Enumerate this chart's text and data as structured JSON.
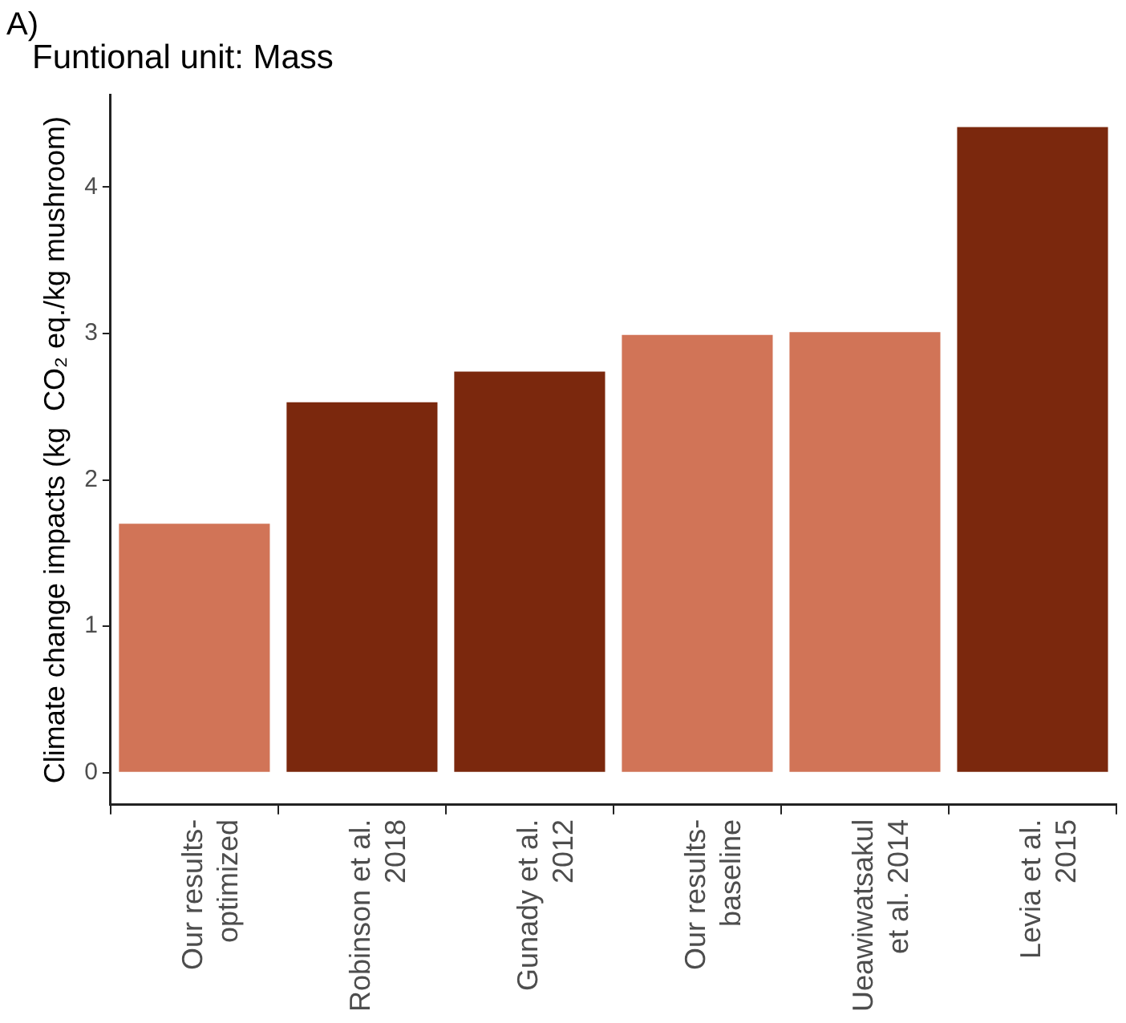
{
  "chart_data": {
    "type": "bar",
    "title": "Funtional unit: Mass",
    "ylabel": "Climate change impacts (kg  CO₂ eq./kg mushroom)",
    "annotations": [
      "A)"
    ],
    "categories": [
      "Our results-\noptimized",
      "Robinson et al.\n2018",
      "Gunady et al.\n2012",
      "Our results-\nbaseline",
      "Ueawiwatsakul\net al. 2014",
      "Levia et al.\n2015"
    ],
    "values": [
      1.7,
      2.53,
      2.74,
      2.99,
      3.01,
      4.41
    ],
    "colors": [
      "#d17457",
      "#7b280d",
      "#7b280d",
      "#d17457",
      "#d17457",
      "#7b280d"
    ],
    "ylim": [
      -0.22,
      4.63
    ],
    "yticks": [
      0,
      1,
      2,
      3,
      4
    ],
    "grid": false
  }
}
